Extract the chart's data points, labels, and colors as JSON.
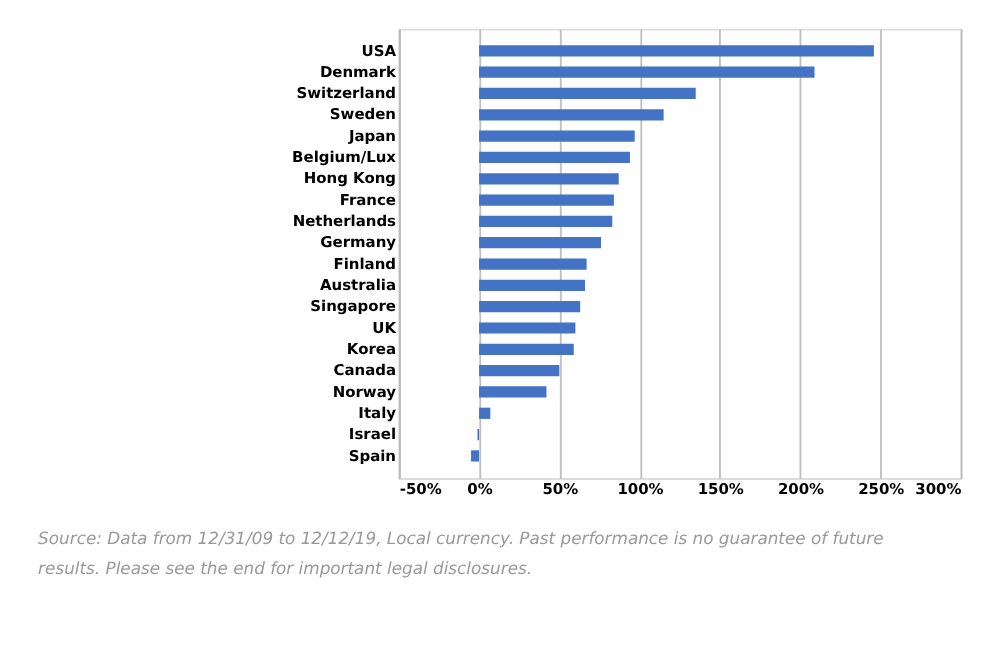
{
  "chart_data": {
    "type": "bar",
    "orientation": "horizontal",
    "categories": [
      "USA",
      "Denmark",
      "Switzerland",
      "Sweden",
      "Japan",
      "Belgium/Lux",
      "Hong Kong",
      "France",
      "Netherlands",
      "Germany",
      "Finland",
      "Australia",
      "Singapore",
      "UK",
      "Korea",
      "Canada",
      "Norway",
      "Italy",
      "Israel",
      "Spain"
    ],
    "values": [
      246,
      209,
      135,
      115,
      97,
      94,
      87,
      84,
      83,
      76,
      67,
      66,
      63,
      60,
      59,
      50,
      42,
      7,
      -1,
      -5
    ],
    "color": "#4472c4",
    "xlim": [
      -50,
      300
    ],
    "xticks": [
      {
        "value": -50,
        "label": "-50%"
      },
      {
        "value": 0,
        "label": "0%"
      },
      {
        "value": 50,
        "label": "50%"
      },
      {
        "value": 100,
        "label": "100%"
      },
      {
        "value": 150,
        "label": "150%"
      },
      {
        "value": 200,
        "label": "200%"
      },
      {
        "value": 250,
        "label": "250%"
      },
      {
        "value": 300,
        "label": "300%"
      }
    ],
    "grid": "x",
    "annotations": [
      "Source: Data from 12/31/09 to 12/12/19, Local currency. Past performance is no guarantee of future results. Please see the end for important legal disclosures."
    ]
  }
}
